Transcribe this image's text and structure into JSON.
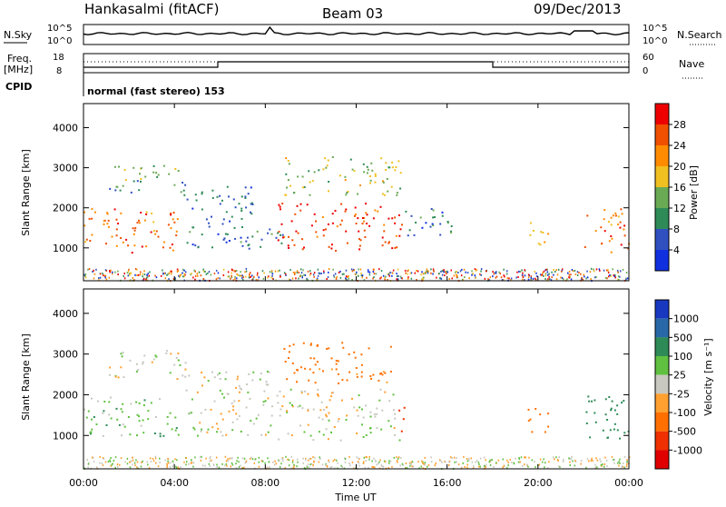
{
  "header": {
    "station": "Hankasalmi (fitACF)",
    "beam": "Beam 03",
    "date": "09/Dec/2013"
  },
  "noise_panel": {
    "left_label": "N.Sky",
    "right_label": "N.Search",
    "left_ticks": [
      "10^5",
      "10^0"
    ],
    "right_ticks": [
      "10^5",
      "10^0"
    ]
  },
  "freq_panel": {
    "left_label_1": "Freq.",
    "left_label_2": "[MHz]",
    "right_label": "Nave",
    "left_ticks": [
      "18",
      "8"
    ],
    "right_ticks": [
      "60",
      "0"
    ]
  },
  "cpid_panel": {
    "label": "CPID",
    "text": "normal (fast stereo) 153"
  },
  "x_axis": {
    "title": "Time UT",
    "ticks": [
      "00:00",
      "04:00",
      "08:00",
      "12:00",
      "16:00",
      "20:00",
      "00:00"
    ],
    "range_hours": [
      0,
      24
    ]
  },
  "power_panel": {
    "ylabel": "Slant Range [km]",
    "yticks": [
      "1000",
      "2000",
      "3000",
      "4000"
    ],
    "colorbar_label": "Power [dB]",
    "colorbar_ticks": [
      "4",
      "8",
      "12",
      "16",
      "20",
      "24",
      "28"
    ],
    "colorbar_colors": [
      "#1030e0",
      "#3050c0",
      "#2e8b57",
      "#6aaa55",
      "#f0c020",
      "#ff8c00",
      "#f05000",
      "#ee0000"
    ]
  },
  "velocity_panel": {
    "ylabel": "Slant Range [km]",
    "yticks": [
      "1000",
      "2000",
      "3000",
      "4000"
    ],
    "colorbar_label": "Velocity [m s⁻¹]",
    "colorbar_ticks": [
      "1000",
      "500",
      "100",
      "25",
      "-25",
      "-100",
      "-500",
      "-1000"
    ],
    "colorbar_colors": [
      "#1838c0",
      "#2868a8",
      "#2e8b57",
      "#60c040",
      "#c8c8c0",
      "#ffa030",
      "#ff7000",
      "#f03000",
      "#e00000"
    ]
  },
  "chart_data": [
    {
      "type": "heatmap",
      "title": "Power",
      "xlabel": "Time UT",
      "ylabel": "Slant Range [km]",
      "xlim": [
        0,
        24
      ],
      "ylim": [
        180,
        4600
      ],
      "zlabel": "Power [dB]",
      "zlim": [
        0,
        32
      ],
      "regions": [
        {
          "t": [
            0.0,
            4.3
          ],
          "r": [
            900,
            2000
          ],
          "dB": 24
        },
        {
          "t": [
            1.0,
            4.4
          ],
          "r": [
            2400,
            3100
          ],
          "dB": 12
        },
        {
          "t": [
            4.4,
            7.5
          ],
          "r": [
            1000,
            2600
          ],
          "dB": 8
        },
        {
          "t": [
            7.0,
            9.0
          ],
          "r": [
            1000,
            1500
          ],
          "dB": 10
        },
        {
          "t": [
            8.5,
            14.0
          ],
          "r": [
            950,
            2150
          ],
          "dB": 28
        },
        {
          "t": [
            8.8,
            14.0
          ],
          "r": [
            2300,
            3300
          ],
          "dB": 16
        },
        {
          "t": [
            14.0,
            16.5
          ],
          "r": [
            1300,
            2000
          ],
          "dB": 8
        },
        {
          "t": [
            19.5,
            20.5
          ],
          "r": [
            1100,
            1700
          ],
          "dB": 18
        },
        {
          "t": [
            22.0,
            24.0
          ],
          "r": [
            900,
            2000
          ],
          "dB": 24
        }
      ]
    },
    {
      "type": "heatmap",
      "title": "Velocity",
      "xlabel": "Time UT",
      "ylabel": "Slant Range [km]",
      "xlim": [
        0,
        24
      ],
      "ylim": [
        180,
        4600
      ],
      "zlabel": "Velocity [m s-1]",
      "zlim": [
        -1000,
        1000
      ],
      "regions": [
        {
          "t": [
            0.0,
            4.3
          ],
          "r": [
            1000,
            2000
          ],
          "v": 60
        },
        {
          "t": [
            1.0,
            4.5
          ],
          "r": [
            2400,
            3100
          ],
          "v": 0
        },
        {
          "t": [
            4.4,
            8.5
          ],
          "r": [
            1000,
            2600
          ],
          "v": 0
        },
        {
          "t": [
            8.5,
            14.0
          ],
          "r": [
            900,
            2150
          ],
          "v": 0
        },
        {
          "t": [
            8.8,
            13.5
          ],
          "r": [
            2300,
            3300
          ],
          "v": -150
        },
        {
          "t": [
            13.8,
            14.2
          ],
          "r": [
            1100,
            1800
          ],
          "v": -700
        },
        {
          "t": [
            19.5,
            20.5
          ],
          "r": [
            1100,
            1700
          ],
          "v": -200
        },
        {
          "t": [
            22.0,
            24.0
          ],
          "r": [
            900,
            2000
          ],
          "v": 300
        }
      ]
    }
  ]
}
